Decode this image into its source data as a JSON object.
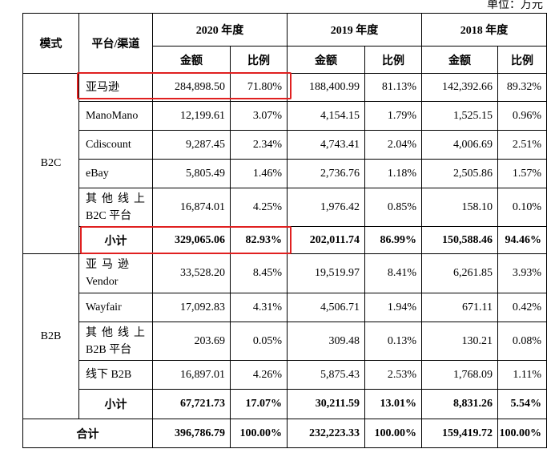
{
  "unit_label": "单位：万元",
  "headers": {
    "mode": "模式",
    "platform": "平台/渠道",
    "years": [
      "2020 年度",
      "2019 年度",
      "2018 年度"
    ],
    "amount": "金额",
    "ratio": "比例"
  },
  "groups": [
    {
      "mode": "B2C",
      "rows": [
        {
          "name": "亚马逊",
          "v": [
            "284,898.50",
            "71.80%",
            "188,400.99",
            "81.13%",
            "142,392.66",
            "89.32%"
          ]
        },
        {
          "name": "ManoMano",
          "v": [
            "12,199.61",
            "3.07%",
            "4,154.15",
            "1.79%",
            "1,525.15",
            "0.96%"
          ]
        },
        {
          "name": "Cdiscount",
          "v": [
            "9,287.45",
            "2.34%",
            "4,743.41",
            "2.04%",
            "4,006.69",
            "2.51%"
          ]
        },
        {
          "name": "eBay",
          "v": [
            "5,805.49",
            "1.46%",
            "2,736.76",
            "1.18%",
            "2,505.86",
            "1.57%"
          ]
        },
        {
          "name1": "其他线上",
          "name2": "B2C 平台",
          "v": [
            "16,874.01",
            "4.25%",
            "1,976.42",
            "0.85%",
            "158.10",
            "0.10%"
          ]
        }
      ],
      "subtotal": {
        "name": "小计",
        "v": [
          "329,065.06",
          "82.93%",
          "202,011.74",
          "86.99%",
          "150,588.46",
          "94.46%"
        ]
      }
    },
    {
      "mode": "B2B",
      "rows": [
        {
          "name1": "亚马逊",
          "name2": "Vendor",
          "v": [
            "33,528.20",
            "8.45%",
            "19,519.97",
            "8.41%",
            "6,261.85",
            "3.93%"
          ]
        },
        {
          "name": "Wayfair",
          "v": [
            "17,092.83",
            "4.31%",
            "4,506.71",
            "1.94%",
            "671.11",
            "0.42%"
          ]
        },
        {
          "name1": "其他线上",
          "name2": "B2B 平台",
          "v": [
            "203.69",
            "0.05%",
            "309.48",
            "0.13%",
            "130.21",
            "0.08%"
          ]
        },
        {
          "name": "线下 B2B",
          "v": [
            "16,897.01",
            "4.26%",
            "5,875.43",
            "2.53%",
            "1,768.09",
            "1.11%"
          ]
        }
      ],
      "subtotal": {
        "name": "小计",
        "v": [
          "67,721.73",
          "17.07%",
          "30,211.59",
          "13.01%",
          "8,831.26",
          "5.54%"
        ]
      }
    }
  ],
  "total": {
    "name": "合计",
    "v": [
      "396,786.79",
      "100.00%",
      "232,223.33",
      "100.00%",
      "159,419.72",
      "100.00%"
    ]
  },
  "highlight_color": "#e02020"
}
